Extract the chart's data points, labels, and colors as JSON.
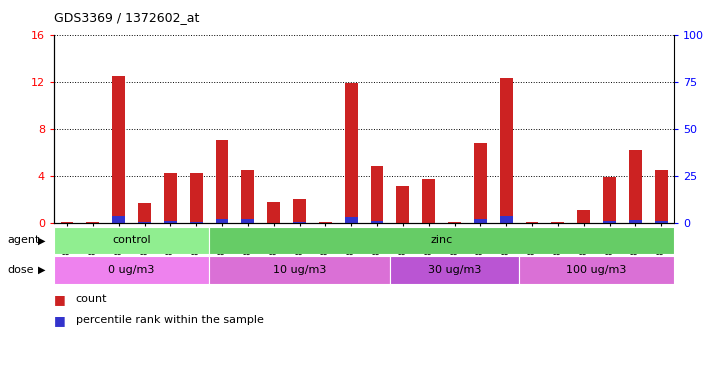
{
  "title": "GDS3369 / 1372602_at",
  "samples": [
    "GSM280163",
    "GSM280164",
    "GSM280165",
    "GSM280166",
    "GSM280167",
    "GSM280168",
    "GSM280169",
    "GSM280170",
    "GSM280171",
    "GSM280172",
    "GSM280173",
    "GSM280174",
    "GSM280175",
    "GSM280176",
    "GSM280177",
    "GSM280178",
    "GSM280179",
    "GSM280180",
    "GSM280181",
    "GSM280182",
    "GSM280183",
    "GSM280184",
    "GSM280185",
    "GSM280186"
  ],
  "count": [
    0.05,
    0.05,
    12.5,
    1.7,
    4.2,
    4.2,
    7.0,
    4.5,
    1.8,
    2.0,
    0.05,
    11.9,
    4.8,
    3.1,
    3.7,
    0.05,
    6.8,
    12.3,
    0.05,
    0.05,
    1.1,
    3.9,
    6.2,
    4.5
  ],
  "percentile": [
    0.0,
    0.0,
    3.4,
    0.3,
    0.7,
    0.5,
    2.0,
    2.0,
    0.0,
    0.3,
    0.0,
    3.2,
    1.0,
    0.0,
    0.0,
    0.0,
    2.0,
    3.5,
    0.0,
    0.0,
    0.0,
    0.8,
    1.2,
    0.8
  ],
  "agent_groups": [
    {
      "label": "control",
      "start": 0,
      "end": 5,
      "color": "#90ee90"
    },
    {
      "label": "zinc",
      "start": 6,
      "end": 23,
      "color": "#66cc66"
    }
  ],
  "dose_groups": [
    {
      "label": "0 ug/m3",
      "start": 0,
      "end": 5,
      "color": "#ee82ee"
    },
    {
      "label": "10 ug/m3",
      "start": 6,
      "end": 12,
      "color": "#da70d6"
    },
    {
      "label": "30 ug/m3",
      "start": 13,
      "end": 17,
      "color": "#ba55d3"
    },
    {
      "label": "100 ug/m3",
      "start": 18,
      "end": 23,
      "color": "#da70d6"
    }
  ],
  "bar_color": "#cc2222",
  "blue_color": "#3333cc",
  "ylim_left": [
    0,
    16
  ],
  "ylim_right": [
    0,
    100
  ],
  "yticks_left": [
    0,
    4,
    8,
    12,
    16
  ],
  "yticks_right": [
    0,
    25,
    50,
    75,
    100
  ],
  "plot_bg": "#ffffff",
  "percentile_scale": 0.16,
  "bar_width": 0.5
}
